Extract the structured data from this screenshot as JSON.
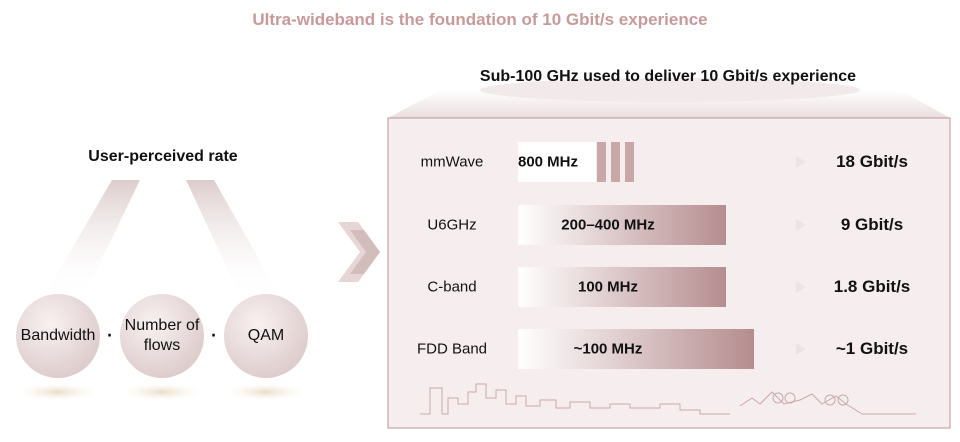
{
  "title": "Ultra-wideband is the foundation of 10 Gbit/s experience",
  "left": {
    "title": "User-perceived rate",
    "factors": [
      "Bandwidth",
      "Number of flows",
      "QAM"
    ],
    "operators": [
      "·",
      "·"
    ]
  },
  "right": {
    "title": "Sub-100 GHz used to deliver 10 Gbit/s experience",
    "bands": [
      {
        "name": "mmWave",
        "bandwidth": "800 MHz",
        "rate": "18 Gbit/s"
      },
      {
        "name": "U6GHz",
        "bandwidth": "200–400 MHz",
        "rate": "9 Gbit/s"
      },
      {
        "name": "C-band",
        "bandwidth": "100 MHz",
        "rate": "1.8 Gbit/s"
      },
      {
        "name": "FDD Band",
        "bandwidth": "~100 MHz",
        "rate": "~1 Gbit/s"
      }
    ]
  }
}
